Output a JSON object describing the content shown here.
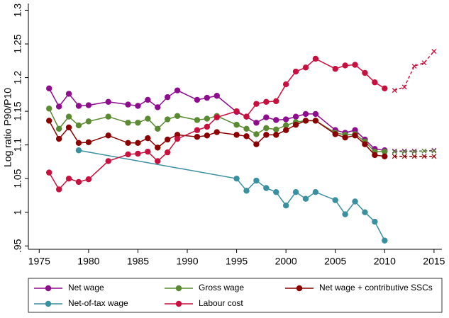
{
  "chart_data": {
    "type": "line",
    "y_label": "Log ratio P90/P10",
    "xlim": [
      1973.9,
      2015.8
    ],
    "xticks": [
      1975,
      1980,
      1985,
      1990,
      1995,
      2000,
      2005,
      2010,
      2015
    ],
    "ylim": [
      0.945,
      1.31
    ],
    "yticks": [
      {
        "value": 0.95,
        "label": ".95"
      },
      1,
      1.05,
      1.1,
      1.15,
      1.2,
      1.25,
      1.3
    ],
    "dashed_from": 2011,
    "legend": "bottom",
    "series": [
      {
        "name": "Net wage",
        "color": "#8e0c8e",
        "x": [
          1976,
          1977,
          1978,
          1979,
          1980,
          1982,
          1984,
          1985,
          1986,
          1987,
          1988,
          1989,
          1991,
          1992,
          1993,
          1995,
          1996,
          1997,
          1998,
          1999,
          2000,
          2001,
          2002,
          2003,
          2005,
          2006,
          2007,
          2008,
          2009,
          2010,
          2011,
          2012,
          2013,
          2014,
          2015
        ],
        "values": [
          1.184,
          1.157,
          1.176,
          1.158,
          1.159,
          1.164,
          1.16,
          1.158,
          1.167,
          1.156,
          1.171,
          1.181,
          1.167,
          1.17,
          1.173,
          1.149,
          1.142,
          1.133,
          1.141,
          1.137,
          1.138,
          1.142,
          1.146,
          1.146,
          1.122,
          1.118,
          1.122,
          1.108,
          1.094,
          1.092,
          1.091,
          1.091,
          1.091,
          1.091,
          1.092
        ]
      },
      {
        "name": "Gross wage",
        "color": "#5a8a32",
        "x": [
          1976,
          1977,
          1978,
          1979,
          1980,
          1982,
          1984,
          1985,
          1986,
          1987,
          1988,
          1989,
          1991,
          1992,
          1993,
          1995,
          1996,
          1997,
          1998,
          1999,
          2000,
          2001,
          2002,
          2003,
          2005,
          2006,
          2007,
          2008,
          2009,
          2010,
          2011,
          2012,
          2013,
          2014,
          2015
        ],
        "values": [
          1.154,
          1.124,
          1.142,
          1.129,
          1.135,
          1.142,
          1.133,
          1.133,
          1.139,
          1.124,
          1.138,
          1.143,
          1.137,
          1.139,
          1.143,
          1.13,
          1.124,
          1.116,
          1.125,
          1.123,
          1.129,
          1.134,
          1.136,
          1.136,
          1.118,
          1.115,
          1.116,
          1.105,
          1.09,
          1.09,
          1.09,
          1.09,
          1.09,
          1.091,
          1.091
        ]
      },
      {
        "name": "Net wage + contributive SSCs",
        "color": "#8b0000",
        "x": [
          1976,
          1977,
          1978,
          1979,
          1980,
          1982,
          1984,
          1985,
          1986,
          1987,
          1988,
          1989,
          1991,
          1992,
          1993,
          1995,
          1996,
          1997,
          1998,
          1999,
          2000,
          2001,
          2002,
          2003,
          2005,
          2006,
          2007,
          2008,
          2009,
          2010,
          2011,
          2012,
          2013,
          2014,
          2015
        ],
        "values": [
          1.136,
          1.109,
          1.126,
          1.103,
          1.104,
          1.114,
          1.103,
          1.103,
          1.11,
          1.096,
          1.108,
          1.115,
          1.112,
          1.114,
          1.119,
          1.115,
          1.113,
          1.101,
          1.115,
          1.115,
          1.122,
          1.13,
          1.136,
          1.136,
          1.116,
          1.111,
          1.114,
          1.101,
          1.085,
          1.083,
          1.083,
          1.083,
          1.083,
          1.083,
          1.083
        ]
      },
      {
        "name": "Net-of-tax wage",
        "color": "#3a8fa0",
        "x": [
          1979,
          1995,
          1996,
          1997,
          1998,
          1999,
          2000,
          2001,
          2002,
          2003,
          2005,
          2006,
          2007,
          2008,
          2009,
          2010
        ],
        "values": [
          1.092,
          1.05,
          1.032,
          1.047,
          1.036,
          1.03,
          1.01,
          1.03,
          1.02,
          1.03,
          1.018,
          0.997,
          1.016,
          1.0,
          0.986,
          0.958
        ]
      },
      {
        "name": "Labour cost",
        "color": "#c8103e",
        "x": [
          1976,
          1977,
          1978,
          1979,
          1980,
          1982,
          1984,
          1985,
          1986,
          1987,
          1988,
          1989,
          1991,
          1992,
          1993,
          1995,
          1996,
          1997,
          1998,
          1999,
          2000,
          2001,
          2002,
          2003,
          2005,
          2006,
          2007,
          2008,
          2009,
          2010,
          2011,
          2012,
          2013,
          2014,
          2015
        ],
        "values": [
          1.059,
          1.034,
          1.05,
          1.045,
          1.049,
          1.076,
          1.086,
          1.087,
          1.09,
          1.076,
          1.089,
          1.109,
          1.122,
          1.127,
          1.141,
          1.15,
          1.142,
          1.161,
          1.164,
          1.165,
          1.19,
          1.209,
          1.215,
          1.228,
          1.213,
          1.218,
          1.219,
          1.207,
          1.193,
          1.184,
          1.181,
          1.186,
          1.217,
          1.222,
          1.239
        ]
      }
    ]
  }
}
